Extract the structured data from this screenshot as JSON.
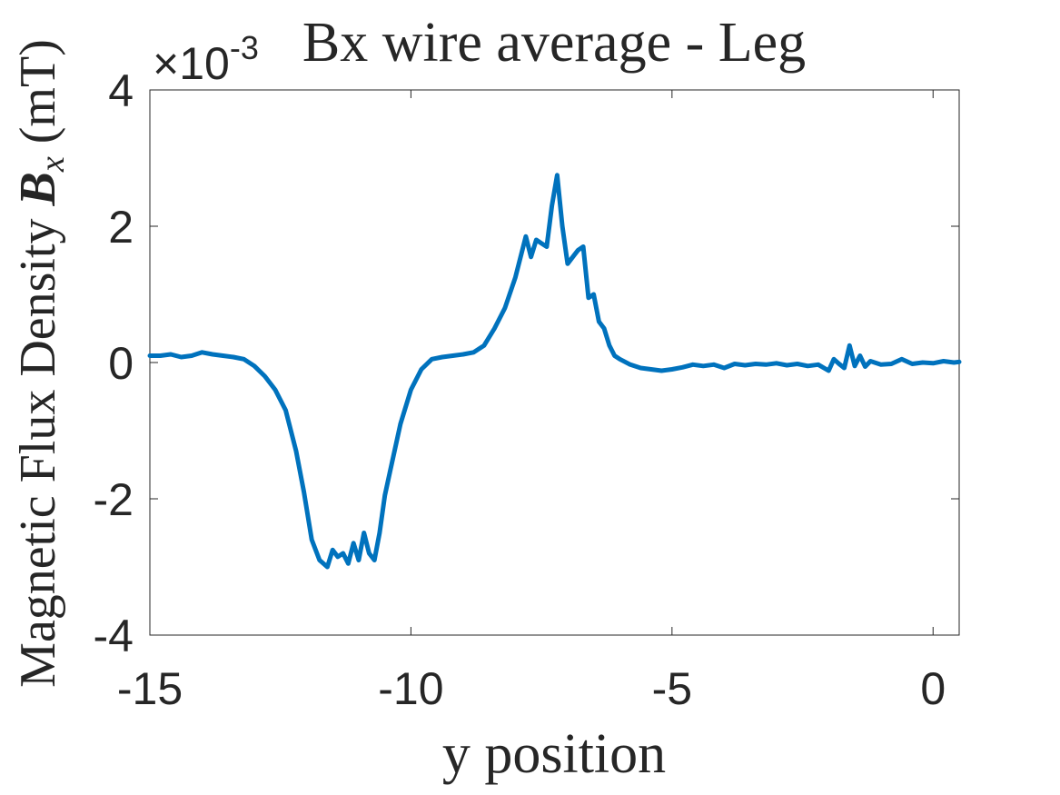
{
  "chart_data": {
    "type": "line",
    "title": "Bx wire average - Leg",
    "xlabel": "y position",
    "ylabel": "Magnetic Flux Density B_x (mT)",
    "ylabel_prefix": "Magnetic Flux Density ",
    "ylabel_symbol": "B",
    "ylabel_subscript": "x",
    "ylabel_suffix": " (mT)",
    "y_exponent_label": "×10",
    "y_exponent_power": "-3",
    "xlim": [
      -15,
      0.5
    ],
    "ylim": [
      -4,
      4
    ],
    "xticks": [
      -15,
      -10,
      -5,
      0
    ],
    "xtick_labels": [
      "-15",
      "-10",
      "-5",
      "0"
    ],
    "yticks": [
      -4,
      -2,
      0,
      2,
      4
    ],
    "ytick_labels": [
      "-4",
      "-2",
      "0",
      "2",
      "4"
    ],
    "grid": false,
    "series": [
      {
        "color": "#0072BD",
        "x": [
          -15.0,
          -14.8,
          -14.6,
          -14.4,
          -14.2,
          -14.0,
          -13.8,
          -13.6,
          -13.4,
          -13.2,
          -13.0,
          -12.8,
          -12.6,
          -12.4,
          -12.2,
          -12.05,
          -11.9,
          -11.75,
          -11.6,
          -11.5,
          -11.4,
          -11.3,
          -11.2,
          -11.1,
          -11.0,
          -10.9,
          -10.8,
          -10.7,
          -10.6,
          -10.5,
          -10.4,
          -10.2,
          -10.0,
          -9.8,
          -9.6,
          -9.4,
          -9.2,
          -9.0,
          -8.8,
          -8.6,
          -8.4,
          -8.2,
          -8.0,
          -7.8,
          -7.7,
          -7.6,
          -7.5,
          -7.4,
          -7.3,
          -7.2,
          -7.1,
          -7.0,
          -6.9,
          -6.8,
          -6.7,
          -6.6,
          -6.5,
          -6.4,
          -6.3,
          -6.2,
          -6.1,
          -6.0,
          -5.8,
          -5.6,
          -5.4,
          -5.2,
          -5.0,
          -4.8,
          -4.6,
          -4.4,
          -4.2,
          -4.0,
          -3.8,
          -3.6,
          -3.4,
          -3.2,
          -3.0,
          -2.8,
          -2.6,
          -2.4,
          -2.2,
          -2.0,
          -1.9,
          -1.8,
          -1.7,
          -1.6,
          -1.5,
          -1.4,
          -1.3,
          -1.2,
          -1.0,
          -0.8,
          -0.6,
          -0.4,
          -0.2,
          0.0,
          0.2,
          0.4,
          0.5
        ],
        "y": [
          0.1,
          0.1,
          0.12,
          0.08,
          0.1,
          0.15,
          0.12,
          0.1,
          0.08,
          0.05,
          -0.05,
          -0.2,
          -0.4,
          -0.7,
          -1.3,
          -1.9,
          -2.6,
          -2.9,
          -3.0,
          -2.75,
          -2.85,
          -2.8,
          -2.95,
          -2.65,
          -2.9,
          -2.5,
          -2.8,
          -2.9,
          -2.5,
          -1.95,
          -1.6,
          -0.9,
          -0.4,
          -0.1,
          0.05,
          0.08,
          0.1,
          0.12,
          0.15,
          0.25,
          0.5,
          0.8,
          1.25,
          1.85,
          1.55,
          1.8,
          1.75,
          1.7,
          2.3,
          2.75,
          2.0,
          1.45,
          1.55,
          1.65,
          1.7,
          0.95,
          1.0,
          0.6,
          0.5,
          0.25,
          0.1,
          0.05,
          -0.03,
          -0.08,
          -0.1,
          -0.12,
          -0.1,
          -0.07,
          -0.03,
          -0.05,
          -0.03,
          -0.08,
          -0.02,
          -0.04,
          -0.02,
          -0.03,
          -0.01,
          -0.04,
          -0.02,
          -0.05,
          -0.03,
          -0.12,
          0.05,
          -0.02,
          -0.08,
          0.25,
          -0.05,
          0.1,
          -0.06,
          0.02,
          -0.03,
          -0.02,
          0.05,
          -0.02,
          0.0,
          -0.01,
          0.02,
          0.0,
          0.01
        ]
      }
    ]
  }
}
